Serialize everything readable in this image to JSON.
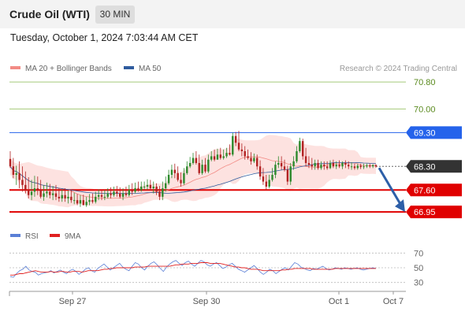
{
  "header": {
    "title": "Crude Oil (WTI)",
    "timeframe": "30 MIN",
    "datetime": "Tuesday, October 1, 2024 7:03:44 AM CET"
  },
  "legend": {
    "items": [
      {
        "label": "MA 20 + Bollinger Bands",
        "color": "#f28b85"
      },
      {
        "label": "MA 50",
        "color": "#2f5c9e"
      }
    ],
    "credit": "Research © 2024 Trading Central"
  },
  "rsi_legend": {
    "items": [
      {
        "label": "RSI",
        "color": "#5a7fd6"
      },
      {
        "label": "9MA",
        "color": "#e02020"
      }
    ]
  },
  "colors": {
    "up": "#2d8a2d",
    "down": "#b22222",
    "bollinger_fill": "#fde2e0",
    "target": "#e00000",
    "target_line": "#a5c97a",
    "pivot": "#2563eb",
    "arrow": "#2d5fa8",
    "last": "#333333"
  },
  "chart_data": {
    "type": "candlestick",
    "ylim": [
      66.58,
      70.99
    ],
    "x_ticks": [
      "Sep 27",
      "Sep 30",
      "Oct 1",
      "Oct 7"
    ],
    "price_levels": [
      {
        "value": 70.8,
        "label": "70.80",
        "kind": "target"
      },
      {
        "value": 70.0,
        "label": "70.00",
        "kind": "target"
      },
      {
        "value": 69.3,
        "label": "69.30",
        "kind": "pivot"
      },
      {
        "value": 68.3,
        "label": "68.30",
        "kind": "last"
      },
      {
        "value": 67.6,
        "label": "67.60",
        "kind": "support"
      },
      {
        "value": 66.95,
        "label": "66.95",
        "kind": "support"
      }
    ],
    "candles": {
      "open": [
        68.52,
        68.3,
        68.05,
        68.1,
        67.9,
        67.75,
        67.6,
        67.45,
        67.55,
        67.65,
        67.6,
        67.4,
        67.5,
        67.55,
        67.45,
        67.5,
        67.4,
        67.35,
        67.45,
        67.35,
        67.4,
        67.3,
        67.3,
        67.2,
        67.3,
        67.15,
        67.25,
        67.3,
        67.25,
        67.4,
        67.45,
        67.4,
        67.4,
        67.5,
        67.45,
        67.55,
        67.5,
        67.4,
        67.5,
        67.45,
        67.6,
        67.55,
        67.65,
        67.6,
        67.7,
        67.7,
        67.75,
        67.65,
        67.7,
        67.55,
        67.4,
        67.65,
        67.8,
        68.05,
        68.2,
        68.1,
        67.9,
        67.8,
        68.1,
        68.3,
        68.4,
        68.55,
        68.4,
        68.1,
        68.35,
        68.15,
        68.5,
        68.6,
        68.5,
        68.65,
        68.55,
        68.6,
        68.7,
        68.65,
        69.2,
        69.0,
        68.8,
        68.75,
        68.6,
        68.55,
        68.45,
        68.55,
        68.3,
        68.0,
        67.85,
        67.7,
        67.9,
        68.05,
        68.35,
        68.4,
        68.3,
        68.2,
        67.85,
        68.3,
        68.45,
        68.75,
        69.05,
        68.6,
        68.4,
        68.35,
        68.3,
        68.4,
        68.25,
        68.35,
        68.3,
        68.25,
        68.4,
        68.3,
        68.35,
        68.3,
        68.4,
        68.35,
        68.3,
        68.3,
        68.25,
        68.32,
        68.28,
        68.3,
        68.33,
        68.3,
        68.34
      ],
      "high": [
        68.75,
        68.55,
        68.32,
        68.45,
        68.3,
        68.15,
        67.98,
        67.9,
        68.02,
        68.0,
        67.9,
        67.75,
        67.82,
        67.78,
        67.72,
        67.75,
        67.66,
        67.62,
        67.65,
        67.58,
        67.6,
        67.52,
        67.48,
        67.45,
        67.46,
        67.4,
        67.48,
        67.5,
        67.55,
        67.62,
        67.62,
        67.6,
        67.65,
        67.68,
        67.7,
        67.72,
        67.68,
        67.65,
        67.7,
        67.75,
        67.8,
        67.82,
        67.85,
        67.85,
        67.85,
        67.92,
        67.9,
        67.85,
        67.8,
        67.72,
        67.85,
        68.0,
        68.2,
        68.35,
        68.38,
        68.3,
        68.12,
        68.25,
        68.45,
        68.58,
        68.7,
        68.75,
        68.65,
        68.5,
        68.55,
        68.65,
        68.75,
        68.8,
        68.82,
        68.85,
        68.8,
        68.85,
        68.95,
        69.3,
        69.32,
        69.35,
        68.98,
        68.9,
        68.8,
        68.72,
        68.68,
        68.65,
        68.48,
        68.25,
        68.05,
        68.05,
        68.25,
        68.45,
        68.6,
        68.6,
        68.5,
        68.32,
        68.4,
        68.6,
        68.9,
        69.15,
        69.12,
        68.85,
        68.6,
        68.55,
        68.5,
        68.5,
        68.45,
        68.45,
        68.45,
        68.48,
        68.5,
        68.45,
        68.48,
        68.45,
        68.48,
        68.45,
        68.42,
        68.38,
        68.38,
        68.38,
        68.38,
        68.38,
        68.38,
        68.36,
        68.36
      ],
      "low": [
        68.25,
        67.95,
        67.75,
        67.65,
        67.55,
        67.5,
        67.35,
        67.3,
        67.4,
        67.45,
        67.35,
        67.28,
        67.38,
        67.35,
        67.3,
        67.3,
        67.25,
        67.25,
        67.25,
        67.2,
        67.22,
        67.18,
        67.15,
        67.1,
        67.15,
        67.1,
        67.15,
        67.2,
        67.2,
        67.3,
        67.3,
        67.3,
        67.35,
        67.35,
        67.4,
        67.4,
        67.35,
        67.3,
        67.4,
        67.4,
        67.45,
        67.5,
        67.55,
        67.55,
        67.6,
        67.6,
        67.58,
        67.5,
        67.45,
        67.3,
        67.3,
        67.55,
        67.75,
        67.95,
        67.95,
        67.85,
        67.7,
        67.75,
        68.05,
        68.25,
        68.35,
        68.35,
        68.05,
        68.05,
        68.1,
        68.1,
        68.45,
        68.45,
        68.5,
        68.5,
        68.5,
        68.55,
        68.62,
        68.6,
        68.9,
        68.75,
        68.6,
        68.5,
        68.5,
        68.35,
        68.4,
        68.2,
        67.9,
        67.75,
        67.6,
        67.65,
        67.85,
        67.95,
        68.25,
        68.2,
        68.15,
        67.75,
        67.75,
        68.2,
        68.4,
        68.7,
        68.5,
        68.3,
        68.25,
        68.2,
        68.2,
        68.2,
        68.2,
        68.2,
        68.2,
        68.22,
        68.25,
        68.22,
        68.25,
        68.22,
        68.25,
        68.22,
        68.2,
        68.2,
        68.2,
        68.22,
        68.22,
        68.25,
        68.25,
        68.25,
        68.26
      ],
      "close": [
        68.3,
        68.05,
        68.1,
        67.9,
        67.75,
        67.6,
        67.45,
        67.55,
        67.65,
        67.6,
        67.4,
        67.5,
        67.55,
        67.45,
        67.5,
        67.4,
        67.35,
        67.45,
        67.35,
        67.4,
        67.3,
        67.3,
        67.2,
        67.3,
        67.15,
        67.25,
        67.3,
        67.25,
        67.4,
        67.45,
        67.4,
        67.4,
        67.5,
        67.45,
        67.55,
        67.5,
        67.4,
        67.5,
        67.45,
        67.6,
        67.55,
        67.65,
        67.6,
        67.7,
        67.7,
        67.75,
        67.65,
        67.7,
        67.55,
        67.4,
        67.65,
        67.8,
        68.05,
        68.2,
        68.1,
        67.9,
        67.8,
        68.1,
        68.3,
        68.4,
        68.55,
        68.4,
        68.1,
        68.35,
        68.15,
        68.5,
        68.6,
        68.5,
        68.65,
        68.55,
        68.6,
        68.7,
        68.65,
        69.2,
        69.0,
        68.8,
        68.75,
        68.6,
        68.55,
        68.45,
        68.55,
        68.3,
        68.0,
        67.85,
        67.7,
        67.9,
        68.05,
        68.35,
        68.4,
        68.3,
        68.2,
        67.85,
        68.3,
        68.45,
        68.75,
        69.05,
        68.6,
        68.4,
        68.35,
        68.3,
        68.4,
        68.25,
        68.35,
        68.3,
        68.25,
        68.4,
        68.3,
        68.35,
        68.3,
        68.4,
        68.35,
        68.3,
        68.3,
        68.25,
        68.32,
        68.28,
        68.3,
        68.33,
        68.3,
        68.34,
        68.3
      ]
    },
    "rsi": {
      "ylim": [
        20,
        80
      ],
      "ticks": [
        70,
        50,
        30
      ],
      "rsi": [
        38,
        37,
        42,
        46,
        48,
        52,
        47,
        45,
        44,
        40,
        42,
        43,
        44,
        46,
        43,
        45,
        47,
        44,
        42,
        46,
        48,
        45,
        41,
        44,
        48,
        50,
        46,
        44,
        49,
        52,
        55,
        51,
        47,
        50,
        53,
        56,
        51,
        48,
        46,
        52,
        57,
        55,
        50,
        47,
        52,
        56,
        58,
        54,
        49,
        45,
        51,
        55,
        58,
        60,
        56,
        53,
        57,
        59,
        55,
        52,
        56,
        60,
        58,
        54,
        52,
        55,
        57,
        53,
        49,
        51,
        54,
        56,
        52,
        48,
        46,
        44,
        47,
        50,
        53,
        49,
        44,
        41,
        44,
        48,
        46,
        42,
        45,
        48,
        50,
        47,
        52,
        57,
        55,
        51,
        49,
        47,
        46,
        49,
        48,
        50,
        52,
        49,
        47,
        48,
        50,
        49,
        48,
        50,
        49,
        48,
        49,
        50,
        48,
        47,
        48,
        49,
        50,
        49
      ],
      "ma9": [
        40,
        40,
        41,
        42,
        42,
        43,
        44,
        45,
        46,
        45,
        44,
        44,
        44,
        45,
        44,
        44,
        45,
        45,
        44,
        44,
        45,
        45,
        45,
        44,
        45,
        46,
        46,
        46,
        46,
        47,
        48,
        48,
        49,
        49,
        50,
        50,
        50,
        50,
        50,
        50,
        51,
        51,
        51,
        51,
        52,
        52,
        52,
        52,
        52,
        52,
        52,
        52,
        53,
        54,
        54,
        55,
        55,
        55,
        56,
        56,
        56,
        57,
        57,
        57,
        56,
        56,
        56,
        56,
        55,
        54,
        53,
        52,
        51,
        51,
        50,
        50,
        49,
        48,
        48,
        48,
        47,
        46,
        46,
        46,
        46,
        46,
        46,
        47,
        47,
        48,
        48,
        49,
        49,
        49,
        49,
        49,
        49,
        48,
        48,
        48,
        48,
        48,
        48,
        48,
        49,
        49,
        49,
        49,
        49,
        49,
        49,
        49,
        49,
        49,
        49,
        49,
        49,
        49
      ]
    },
    "forecast": {
      "from": 68.3,
      "to": 66.95
    }
  }
}
